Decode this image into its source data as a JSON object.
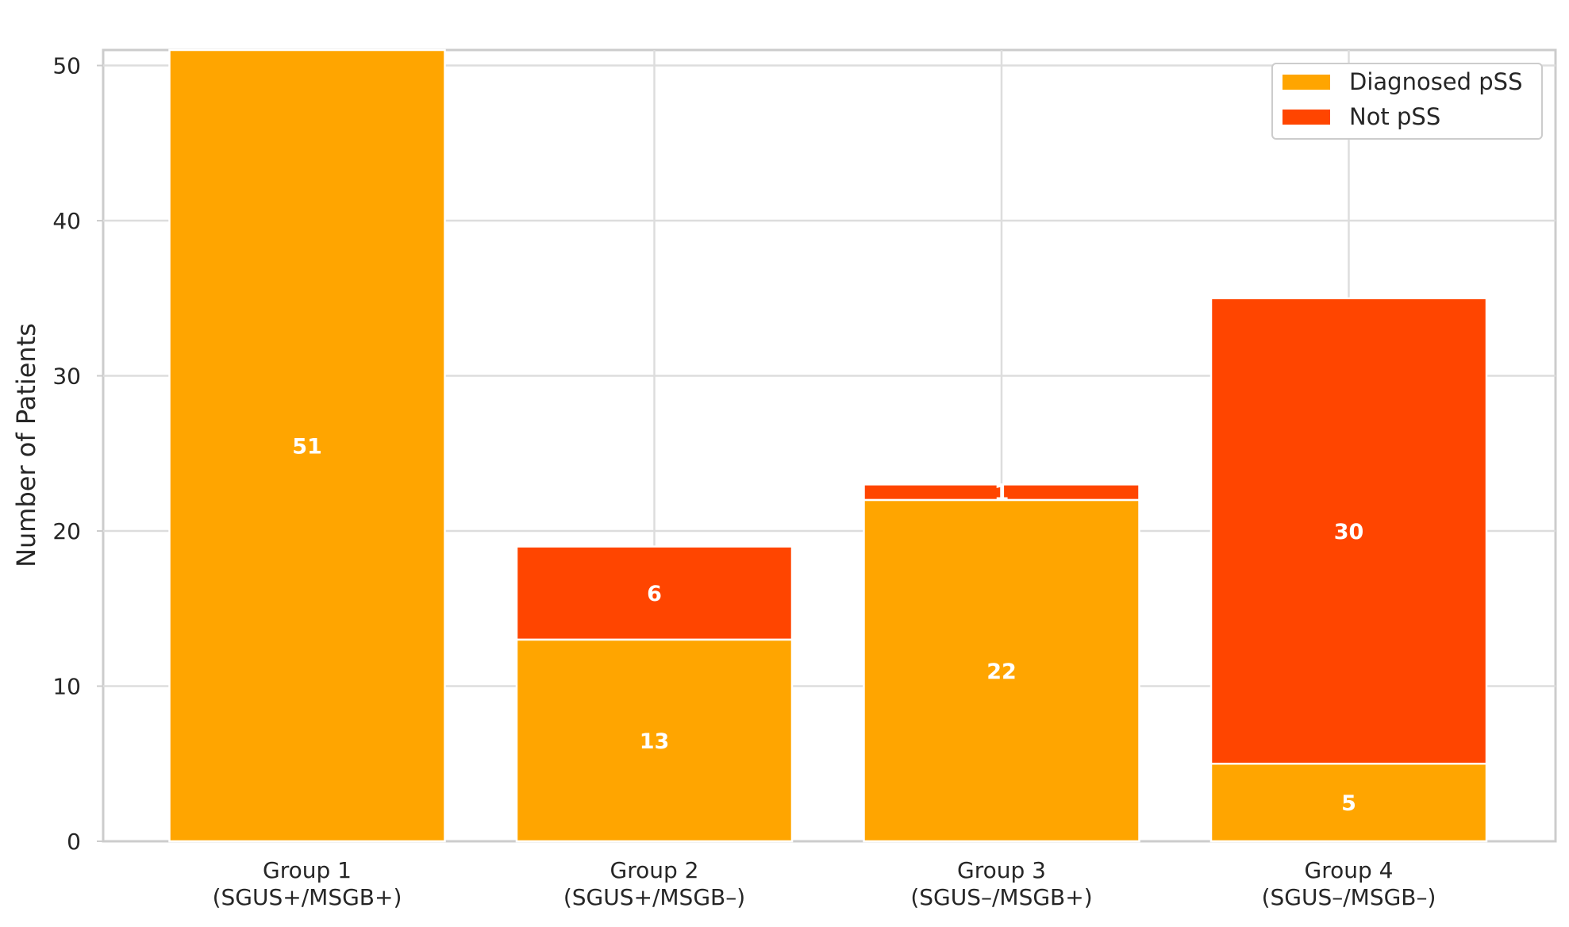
{
  "chart_data": {
    "type": "bar",
    "stacked": true,
    "categories": [
      [
        "Group 1",
        "(SGUS+/MSGB+)"
      ],
      [
        "Group 2",
        "(SGUS+/MSGB–)"
      ],
      [
        "Group 3",
        "(SGUS–/MSGB+)"
      ],
      [
        "Group 4",
        "(SGUS–/MSGB–)"
      ]
    ],
    "series": [
      {
        "name": "Diagnosed pSS",
        "values": [
          51,
          13,
          22,
          5
        ],
        "color": "#FFA500"
      },
      {
        "name": "Not pSS",
        "values": [
          0,
          6,
          1,
          30
        ],
        "color": "#FF4500"
      }
    ],
    "ylabel": "Number of Patients",
    "ylim": [
      0,
      51
    ],
    "yticks": [
      0,
      10,
      20,
      30,
      40,
      50
    ],
    "grid": true,
    "legend_position": "top-right"
  }
}
